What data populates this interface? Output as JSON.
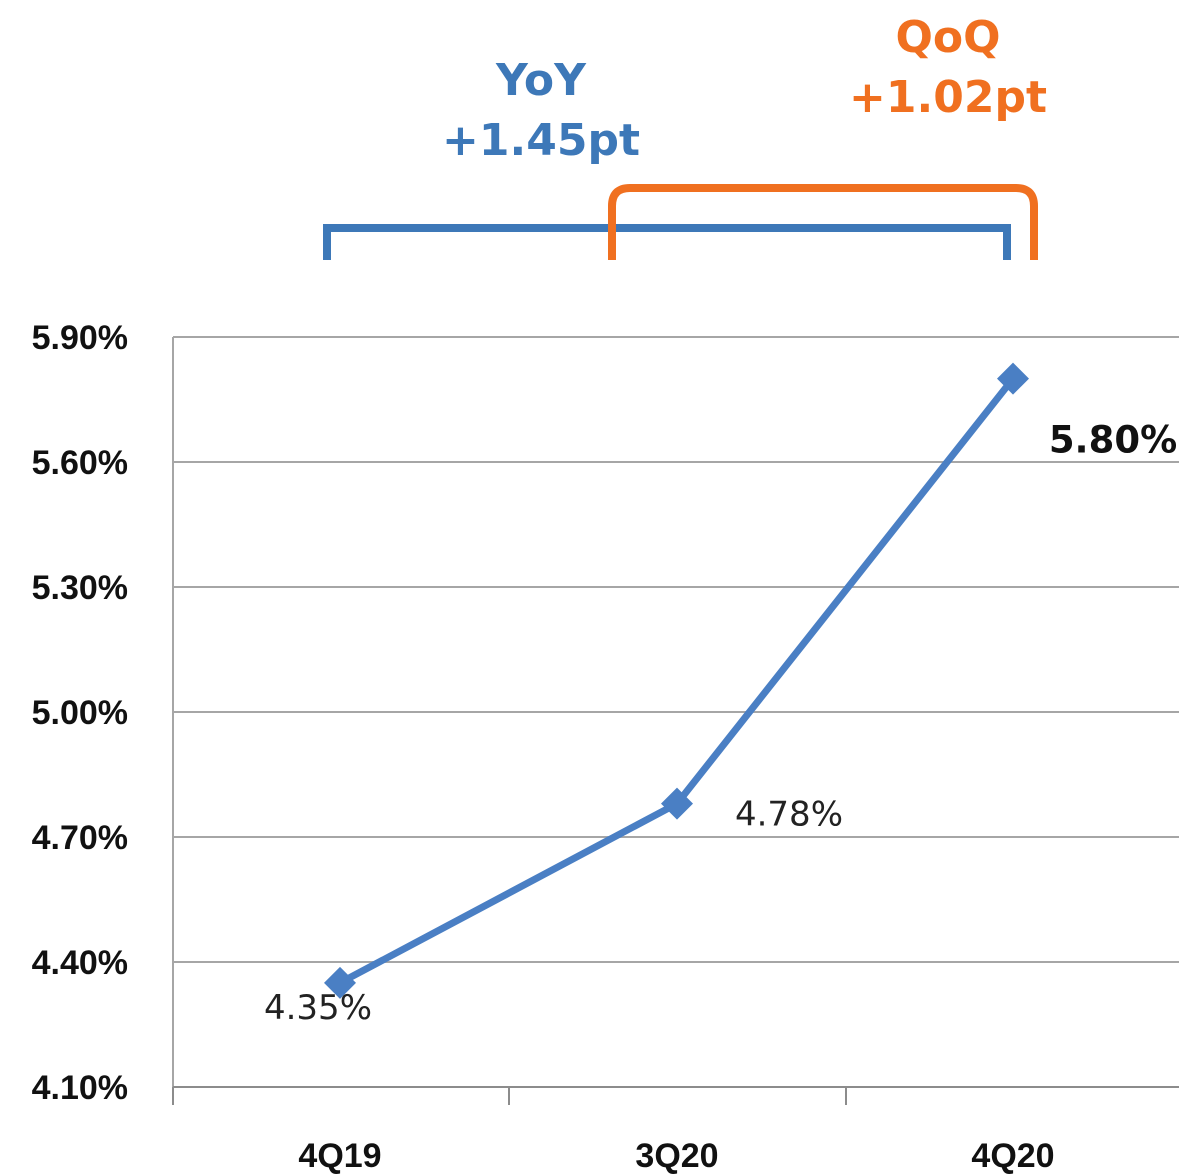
{
  "chart_data": {
    "type": "line",
    "categories": [
      "4Q19",
      "3Q20",
      "4Q20"
    ],
    "series": [
      {
        "values": [
          4.35,
          4.78,
          5.8
        ],
        "data_labels": [
          "4.35%",
          "4.78%",
          "5.80%"
        ],
        "color": "#4a7fc4"
      }
    ],
    "ylim": [
      4.1,
      5.9
    ],
    "yticks": [
      4.1,
      4.4,
      4.7,
      5.0,
      5.3,
      5.6,
      5.9
    ],
    "ytick_labels": [
      "4.10%",
      "4.40%",
      "4.70%",
      "5.00%",
      "5.30%",
      "5.60%",
      "5.90%"
    ],
    "grid": true,
    "annotations": {
      "yoy": {
        "title": "YoY",
        "value": "+1.45pt",
        "color": "#3d78b8",
        "from": "4Q19",
        "to": "4Q20"
      },
      "qoq": {
        "title": "QoQ",
        "value": "+1.02pt",
        "color": "#f07020",
        "from": "3Q20",
        "to": "4Q20"
      }
    }
  }
}
